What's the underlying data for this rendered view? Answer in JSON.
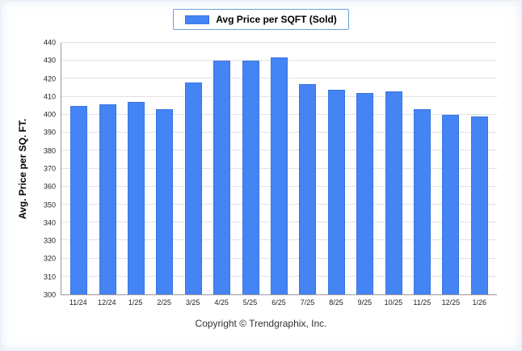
{
  "legend": {
    "label": "Avg Price per SQFT (Sold)"
  },
  "footer": {
    "text": "Copyright © Trendgraphix, Inc."
  },
  "chart_data": {
    "type": "bar",
    "title": "Avg Price per SQFT (Sold)",
    "xlabel": "",
    "ylabel": "Avg. Price per SQ. FT.",
    "categories": [
      "11/24",
      "12/24",
      "1/25",
      "2/25",
      "3/25",
      "4/25",
      "5/25",
      "6/25",
      "7/25",
      "8/25",
      "9/25",
      "10/25",
      "11/25",
      "12/25",
      "1/26"
    ],
    "values": [
      405,
      406,
      407,
      403,
      418,
      430,
      430,
      432,
      417,
      414,
      412,
      413,
      403,
      400,
      399
    ],
    "ylim": [
      300,
      440
    ],
    "ytick_step": 10,
    "bar_color": "#4584f4",
    "bar_border_color": "#3a76e0",
    "grid": true,
    "legend_position": "top"
  }
}
